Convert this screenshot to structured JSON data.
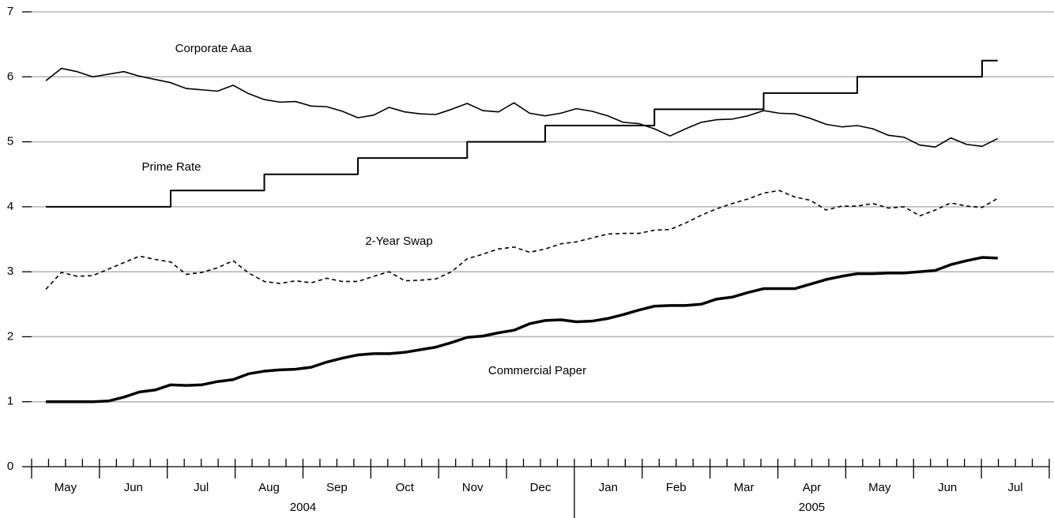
{
  "chart_data": {
    "type": "line",
    "x": [
      0.21,
      0.44,
      0.67,
      0.9,
      1.13,
      1.36,
      1.59,
      1.82,
      2.05,
      2.28,
      2.51,
      2.74,
      2.97,
      3.2,
      3.43,
      3.66,
      3.89,
      4.12,
      4.35,
      4.58,
      4.81,
      5.04,
      5.27,
      5.5,
      5.73,
      5.96,
      6.19,
      6.42,
      6.65,
      6.88,
      7.11,
      7.34,
      7.57,
      7.8,
      8.03,
      8.26,
      8.49,
      8.72,
      8.95,
      9.18,
      9.41,
      9.64,
      9.87,
      10.1,
      10.33,
      10.56,
      10.79,
      11.02,
      11.25,
      11.48,
      11.71,
      11.94,
      12.17,
      12.4,
      12.63,
      12.86,
      13.09,
      13.32,
      13.55,
      13.78,
      14.01,
      14.24
    ],
    "series": [
      {
        "name": "Corporate Aaa",
        "color": "#000000",
        "style": "solid",
        "values": [
          5.94,
          6.13,
          6.08,
          6.0,
          6.04,
          6.08,
          6.01,
          5.96,
          5.91,
          5.82,
          5.8,
          5.78,
          5.87,
          5.74,
          5.65,
          5.61,
          5.62,
          5.55,
          5.54,
          5.47,
          5.37,
          5.41,
          5.53,
          5.46,
          5.43,
          5.42,
          5.5,
          5.59,
          5.48,
          5.46,
          5.6,
          5.44,
          5.4,
          5.44,
          5.51,
          5.47,
          5.4,
          5.3,
          5.28,
          5.2,
          5.09,
          5.2,
          5.3,
          5.34,
          5.35,
          5.4,
          5.48,
          5.44,
          5.43,
          5.36,
          5.27,
          5.23,
          5.25,
          5.2,
          5.1,
          5.07,
          4.95,
          4.92,
          5.06,
          4.96,
          4.93,
          5.05
        ]
      },
      {
        "name": "Prime Rate",
        "color": "#000000",
        "style": "step",
        "values": [
          4.0,
          4.0,
          4.0,
          4.0,
          4.0,
          4.0,
          4.0,
          4.0,
          4.25,
          4.25,
          4.25,
          4.25,
          4.25,
          4.25,
          4.5,
          4.5,
          4.5,
          4.5,
          4.5,
          4.5,
          4.75,
          4.75,
          4.75,
          4.75,
          4.75,
          4.75,
          4.75,
          5.0,
          5.0,
          5.0,
          5.0,
          5.0,
          5.25,
          5.25,
          5.25,
          5.25,
          5.25,
          5.25,
          5.25,
          5.5,
          5.5,
          5.5,
          5.5,
          5.5,
          5.5,
          5.5,
          5.75,
          5.75,
          5.75,
          5.75,
          5.75,
          5.75,
          6.0,
          6.0,
          6.0,
          6.0,
          6.0,
          6.0,
          6.0,
          6.0,
          6.25,
          6.25
        ]
      },
      {
        "name": "2-Year Swap",
        "color": "#000000",
        "style": "dashed",
        "values": [
          2.73,
          2.99,
          2.93,
          2.94,
          3.04,
          3.14,
          3.24,
          3.19,
          3.15,
          2.96,
          2.99,
          3.06,
          3.17,
          2.98,
          2.85,
          2.82,
          2.86,
          2.83,
          2.9,
          2.85,
          2.85,
          2.93,
          3.0,
          2.86,
          2.87,
          2.89,
          3.0,
          3.2,
          3.27,
          3.35,
          3.38,
          3.3,
          3.35,
          3.43,
          3.46,
          3.52,
          3.58,
          3.59,
          3.59,
          3.64,
          3.65,
          3.75,
          3.87,
          3.97,
          4.05,
          4.12,
          4.21,
          4.25,
          4.15,
          4.1,
          3.95,
          4.01,
          4.01,
          4.05,
          3.98,
          4.0,
          3.86,
          3.95,
          4.06,
          4.01,
          3.99,
          4.13
        ]
      },
      {
        "name": "Commercial Paper",
        "color": "#000000",
        "style": "thick",
        "values": [
          1.0,
          1.0,
          1.0,
          1.0,
          1.01,
          1.07,
          1.15,
          1.18,
          1.26,
          1.25,
          1.26,
          1.31,
          1.34,
          1.43,
          1.47,
          1.49,
          1.5,
          1.53,
          1.61,
          1.67,
          1.72,
          1.74,
          1.74,
          1.76,
          1.8,
          1.84,
          1.91,
          1.99,
          2.01,
          2.06,
          2.1,
          2.2,
          2.25,
          2.26,
          2.23,
          2.24,
          2.28,
          2.34,
          2.41,
          2.47,
          2.48,
          2.48,
          2.5,
          2.58,
          2.61,
          2.68,
          2.74,
          2.74,
          2.74,
          2.81,
          2.88,
          2.93,
          2.97,
          2.97,
          2.98,
          2.98,
          3.0,
          3.02,
          3.11,
          3.17,
          3.22,
          3.21
        ]
      }
    ],
    "ylim": [
      0,
      7
    ],
    "yticks": [
      0,
      1,
      2,
      3,
      4,
      5,
      6,
      7
    ],
    "grid": true,
    "xlim": [
      0,
      15
    ],
    "xticks": [
      0,
      1,
      2,
      3,
      4,
      5,
      6,
      7,
      8,
      9,
      10,
      11,
      12,
      13,
      14,
      15
    ],
    "month_labels": [
      {
        "value": 0.5,
        "label": "May"
      },
      {
        "value": 1.5,
        "label": "Jun"
      },
      {
        "value": 2.5,
        "label": "Jul"
      },
      {
        "value": 3.5,
        "label": "Aug"
      },
      {
        "value": 4.5,
        "label": "Sep"
      },
      {
        "value": 5.5,
        "label": "Oct"
      },
      {
        "value": 6.5,
        "label": "Nov"
      },
      {
        "value": 7.5,
        "label": "Dec"
      },
      {
        "value": 8.5,
        "label": "Jan"
      },
      {
        "value": 9.5,
        "label": "Feb"
      },
      {
        "value": 10.5,
        "label": "Mar"
      },
      {
        "value": 11.5,
        "label": "Apr"
      },
      {
        "value": 12.5,
        "label": "May"
      },
      {
        "value": 13.5,
        "label": "Jun"
      },
      {
        "value": 14.5,
        "label": "Jul"
      }
    ],
    "year_labels": [
      {
        "value": 4,
        "label": "2004"
      },
      {
        "value": 11.5,
        "label": "2005"
      }
    ],
    "year_breaks": [
      8
    ]
  }
}
